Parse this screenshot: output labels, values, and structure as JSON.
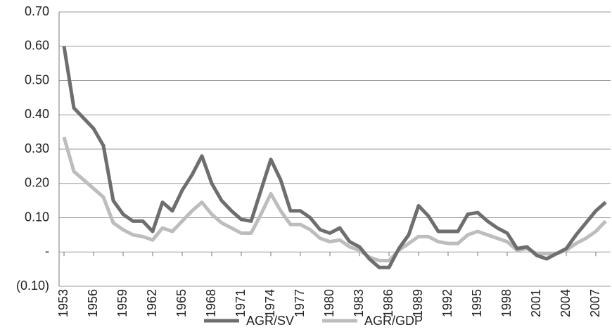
{
  "chart_data": {
    "type": "line",
    "x": [
      1953,
      1954,
      1955,
      1956,
      1957,
      1958,
      1959,
      1960,
      1961,
      1962,
      1963,
      1964,
      1965,
      1966,
      1967,
      1968,
      1969,
      1970,
      1971,
      1972,
      1973,
      1974,
      1975,
      1976,
      1977,
      1978,
      1979,
      1980,
      1981,
      1982,
      1983,
      1984,
      1985,
      1986,
      1987,
      1988,
      1989,
      1990,
      1991,
      1992,
      1993,
      1994,
      1995,
      1996,
      1997,
      1998,
      1999,
      2000,
      2001,
      2002,
      2003,
      2004,
      2005,
      2006,
      2007,
      2008
    ],
    "series": [
      {
        "name": "AGR/SV",
        "color": "#6e6e6e",
        "values": [
          0.6,
          0.42,
          0.39,
          0.36,
          0.31,
          0.15,
          0.11,
          0.09,
          0.09,
          0.06,
          0.145,
          0.12,
          0.18,
          0.225,
          0.28,
          0.2,
          0.15,
          0.12,
          0.095,
          0.09,
          0.18,
          0.27,
          0.21,
          0.12,
          0.12,
          0.1,
          0.065,
          0.055,
          0.07,
          0.03,
          0.015,
          -0.02,
          -0.045,
          -0.045,
          0.01,
          0.05,
          0.135,
          0.105,
          0.06,
          0.06,
          0.06,
          0.11,
          0.115,
          0.09,
          0.07,
          0.055,
          0.01,
          0.015,
          -0.01,
          -0.02,
          -0.005,
          0.01,
          0.05,
          0.085,
          0.12,
          0.145
        ]
      },
      {
        "name": "AGR/GDP",
        "color": "#bdbdbd",
        "values": [
          0.335,
          0.235,
          0.21,
          0.185,
          0.16,
          0.085,
          0.065,
          0.05,
          0.045,
          0.035,
          0.07,
          0.06,
          0.09,
          0.12,
          0.145,
          0.11,
          0.085,
          0.07,
          0.055,
          0.055,
          0.11,
          0.17,
          0.12,
          0.08,
          0.08,
          0.065,
          0.04,
          0.03,
          0.035,
          0.015,
          0.005,
          -0.015,
          -0.025,
          -0.025,
          0.005,
          0.025,
          0.045,
          0.045,
          0.03,
          0.025,
          0.025,
          0.05,
          0.06,
          0.05,
          0.04,
          0.03,
          0.005,
          0.01,
          -0.005,
          -0.005,
          -0.005,
          0.005,
          0.025,
          0.04,
          0.06,
          0.09
        ]
      }
    ],
    "xlim": [
      1952.5,
      2008.5
    ],
    "xticks": [
      1953,
      1956,
      1959,
      1962,
      1965,
      1968,
      1971,
      1974,
      1977,
      1980,
      1983,
      1986,
      1989,
      1992,
      1995,
      1998,
      2001,
      2004,
      2007
    ],
    "ylim": [
      -0.1,
      0.7
    ],
    "yticks": [
      {
        "value": -0.1,
        "label": "(0.10)"
      },
      {
        "value": 0,
        "label": "-"
      },
      {
        "value": 0.1,
        "label": "0.10"
      },
      {
        "value": 0.2,
        "label": "0.20"
      },
      {
        "value": 0.3,
        "label": "0.30"
      },
      {
        "value": 0.4,
        "label": "0.40"
      },
      {
        "value": 0.5,
        "label": "0.50"
      },
      {
        "value": 0.6,
        "label": "0.60"
      },
      {
        "value": 0.7,
        "label": "0.70"
      }
    ],
    "grid": true
  }
}
